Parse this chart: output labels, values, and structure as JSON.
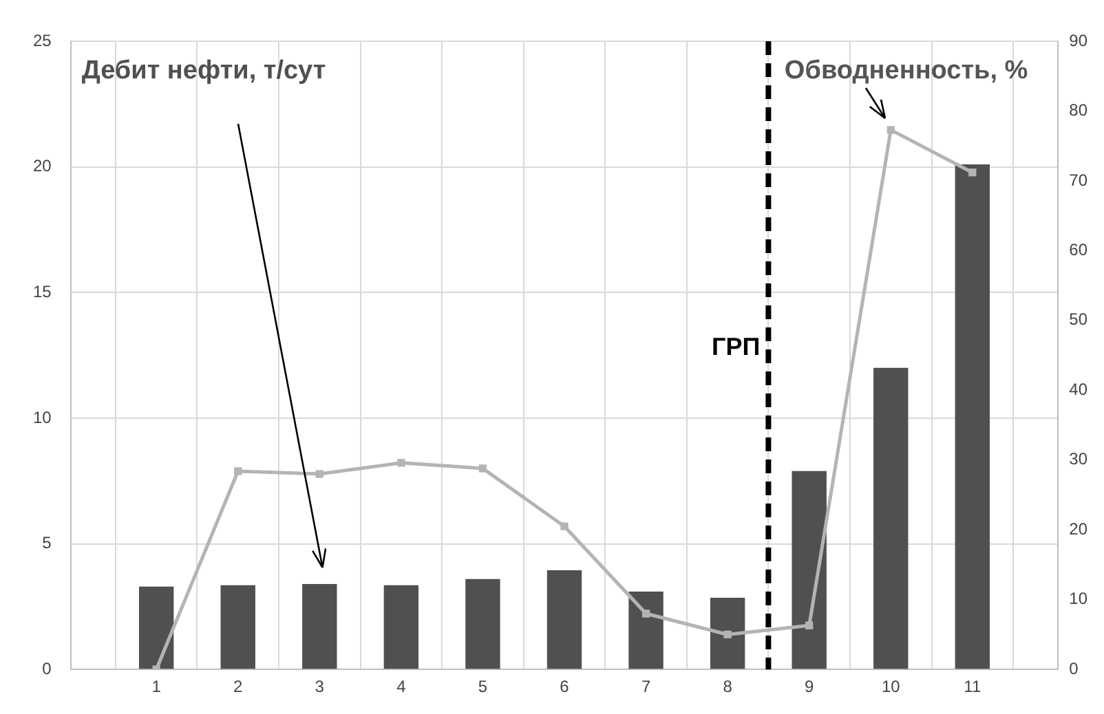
{
  "chart_data": {
    "type": "bar",
    "x": [
      1,
      2,
      3,
      4,
      5,
      6,
      7,
      8,
      9,
      10,
      11
    ],
    "xlim": [
      0.5,
      11.5
    ],
    "xticks": [
      1,
      2,
      3,
      4,
      5,
      6,
      7,
      8,
      9,
      10,
      11
    ],
    "series": [
      {
        "name": "Дебит нефти, т/сут",
        "color": "#505050",
        "values": [
          3.3,
          3.35,
          3.4,
          3.35,
          3.6,
          3.95,
          3.1,
          2.85,
          7.9,
          12.0,
          20.1
        ]
      },
      {
        "name": "Обводненность, %",
        "type": "line",
        "axis": "y2",
        "color": "#b4b4b4",
        "values": [
          0,
          28.4,
          28.0,
          29.6,
          28.8,
          20.5,
          8.0,
          5.0,
          6.3,
          77.3,
          71.2
        ]
      }
    ],
    "ylim": [
      0,
      25
    ],
    "yticks": [
      0,
      5,
      10,
      15,
      20,
      25
    ],
    "y2lim": [
      0,
      90
    ],
    "y2ticks": [
      0,
      10,
      20,
      30,
      40,
      50,
      60,
      70,
      80,
      90
    ],
    "ref_lines": [
      {
        "axis": "x",
        "value": 8.5,
        "label": "ГРП",
        "color": "#000000",
        "line_style": "dashed"
      }
    ],
    "grid": true,
    "legend": false,
    "marker": "square",
    "line_style": "solid"
  }
}
